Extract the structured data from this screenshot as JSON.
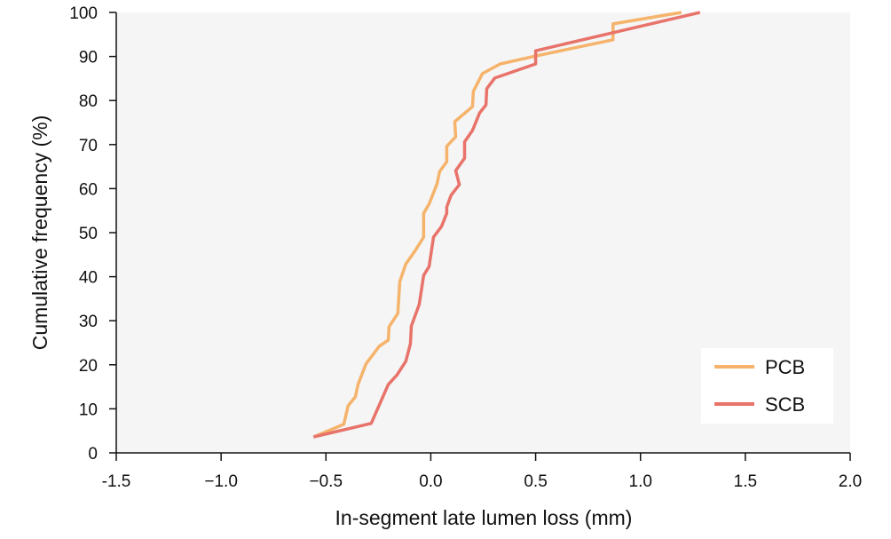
{
  "chart_data": {
    "type": "line",
    "title": "",
    "xlabel": "In-segment late lumen loss (mm)",
    "ylabel": "Cumulative frequency (%)",
    "xlim": [
      -1.5,
      2.0
    ],
    "ylim": [
      0,
      100
    ],
    "xticks": [
      -1.5,
      -1.0,
      -0.5,
      0.0,
      0.5,
      1.0,
      1.5,
      2.0
    ],
    "xtick_labels": [
      "-1.5",
      "−1.0",
      "−0.5",
      "0.0",
      "0.5",
      "1.0",
      "1.5",
      "2.0"
    ],
    "yticks": [
      0,
      10,
      20,
      30,
      40,
      50,
      60,
      70,
      80,
      90,
      100
    ],
    "ytick_labels": [
      "0",
      "10",
      "20",
      "30",
      "40",
      "50",
      "60",
      "70",
      "80",
      "90",
      "100"
    ],
    "grid": false,
    "legend_position": "bottom-right",
    "colors": {
      "plot_background": "#f5f5f5"
    },
    "series": [
      {
        "name": "PCB",
        "color": "#f5b36b",
        "x": [
          -0.559,
          -0.415,
          -0.394,
          -0.36,
          -0.347,
          -0.309,
          -0.246,
          -0.203,
          -0.199,
          -0.157,
          -0.148,
          -0.119,
          -0.076,
          -0.034,
          -0.034,
          -0.008,
          0.03,
          0.042,
          0.076,
          0.076,
          0.119,
          0.114,
          0.199,
          0.203,
          0.246,
          0.331,
          0.5,
          0.869,
          0.869,
          1.195
        ],
        "y": [
          3.6,
          6.5,
          10.7,
          12.7,
          15.5,
          20.2,
          24.2,
          25.6,
          28.6,
          31.7,
          38.9,
          42.9,
          45.8,
          49.0,
          54.4,
          56.5,
          61.1,
          63.9,
          66.1,
          69.6,
          71.8,
          75.2,
          78.6,
          82.1,
          86.1,
          88.3,
          90.1,
          93.8,
          97.4,
          100
        ]
      },
      {
        "name": "SCB",
        "color": "#e8736a",
        "x": [
          -0.559,
          -0.284,
          -0.203,
          -0.161,
          -0.119,
          -0.097,
          -0.093,
          -0.055,
          -0.034,
          -0.008,
          0.013,
          0.051,
          0.076,
          0.076,
          0.097,
          0.136,
          0.119,
          0.161,
          0.161,
          0.199,
          0.233,
          0.263,
          0.267,
          0.305,
          0.5,
          0.5,
          0.869,
          1.284
        ],
        "y": [
          3.6,
          6.7,
          15.5,
          17.7,
          20.8,
          24.8,
          28.8,
          33.7,
          40.3,
          42.3,
          49.0,
          51.4,
          54.4,
          55.8,
          58.5,
          60.9,
          64.1,
          66.9,
          70.6,
          73.2,
          77.2,
          79.0,
          82.7,
          85.1,
          88.3,
          91.3,
          95.4,
          100
        ]
      }
    ]
  }
}
